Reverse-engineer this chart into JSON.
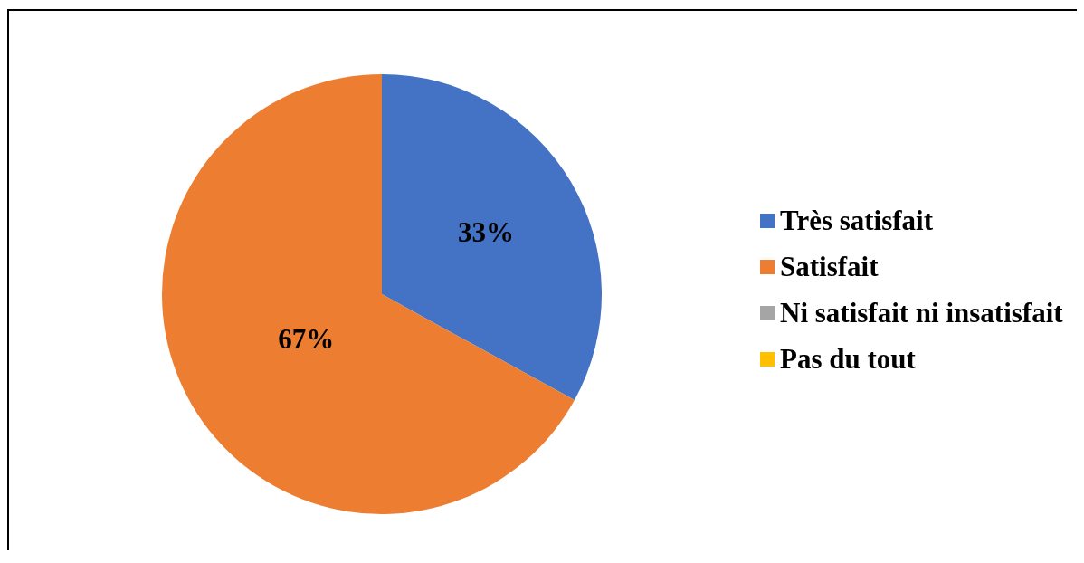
{
  "chart_data": {
    "type": "pie",
    "categories": [
      "Très satisfait",
      "Satisfait",
      "Ni satisfait ni insatisfait",
      "Pas du tout"
    ],
    "values": [
      33,
      67,
      0,
      0
    ],
    "colors": [
      "#4472c4",
      "#ed7d31",
      "#a5a5a5",
      "#ffc000"
    ],
    "value_labels": [
      "33%",
      "67%",
      null,
      null
    ],
    "legend": "right"
  }
}
